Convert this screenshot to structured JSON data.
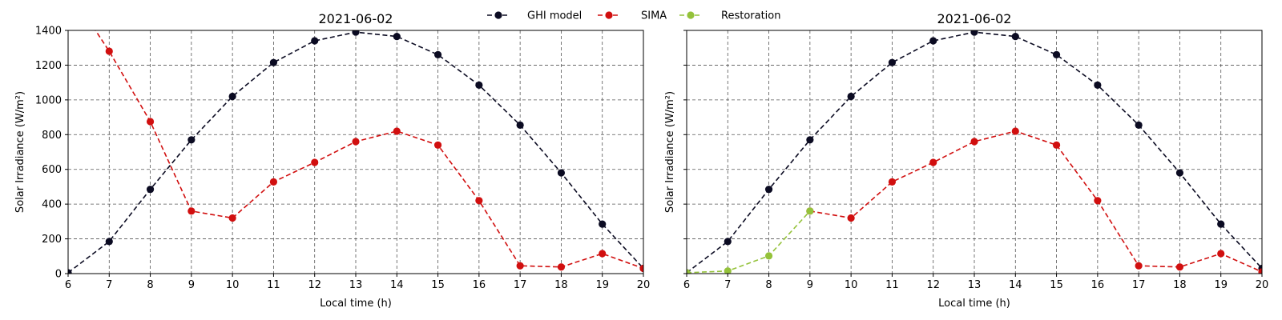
{
  "legend": {
    "placement": "top-center",
    "entries": [
      {
        "key": "ghi",
        "label": "GHI model",
        "color": "#0b0b22"
      },
      {
        "key": "sima",
        "label": "SIMA",
        "color": "#d10f0f"
      },
      {
        "key": "restoration",
        "label": "Restoration",
        "color": "#94c23a"
      }
    ]
  },
  "chart_data": [
    {
      "type": "line",
      "title": "2021-06-02",
      "xlabel": "Local time (h)",
      "ylabel": "Solar Irradiance (W/m²)",
      "xlim": [
        6,
        20
      ],
      "ylim": [
        0,
        1400
      ],
      "xticks": [
        6,
        7,
        8,
        9,
        10,
        11,
        12,
        13,
        14,
        15,
        16,
        17,
        18,
        19,
        20
      ],
      "yticks": [
        0,
        200,
        400,
        600,
        800,
        1000,
        1200,
        1400
      ],
      "grid": true,
      "series": [
        {
          "key": "ghi",
          "name": "GHI model",
          "color": "#0b0b22",
          "x": [
            6,
            7,
            8,
            9,
            10,
            11,
            12,
            13,
            14,
            15,
            16,
            17,
            18,
            19,
            20
          ],
          "y": [
            5,
            185,
            485,
            770,
            1020,
            1215,
            1340,
            1390,
            1365,
            1260,
            1085,
            855,
            580,
            285,
            30
          ]
        },
        {
          "key": "sima",
          "name": "SIMA",
          "color": "#d10f0f",
          "x": [
            6,
            7,
            8,
            9,
            10,
            11,
            12,
            13,
            14,
            15,
            16,
            17,
            18,
            19,
            20
          ],
          "y": [
            1640,
            1280,
            875,
            360,
            320,
            528,
            640,
            760,
            820,
            740,
            420,
            45,
            38,
            115,
            30
          ],
          "markers_from_index": 1
        }
      ]
    },
    {
      "type": "line",
      "title": "2021-06-02",
      "xlabel": "Local time (h)",
      "ylabel": "Solar Irradiance (W/m²)",
      "xlim": [
        6,
        20
      ],
      "ylim": [
        0,
        1400
      ],
      "xticks": [
        6,
        7,
        8,
        9,
        10,
        11,
        12,
        13,
        14,
        15,
        16,
        17,
        18,
        19,
        20
      ],
      "yticks": [
        0,
        200,
        400,
        600,
        800,
        1000,
        1200,
        1400
      ],
      "grid": true,
      "series": [
        {
          "key": "ghi",
          "name": "GHI model",
          "color": "#0b0b22",
          "x": [
            6,
            7,
            8,
            9,
            10,
            11,
            12,
            13,
            14,
            15,
            16,
            17,
            18,
            19,
            20
          ],
          "y": [
            5,
            185,
            485,
            770,
            1020,
            1215,
            1340,
            1390,
            1365,
            1260,
            1085,
            855,
            580,
            285,
            30
          ]
        },
        {
          "key": "sima",
          "name": "SIMA",
          "color": "#d10f0f",
          "x": [
            9,
            10,
            11,
            12,
            13,
            14,
            15,
            16,
            17,
            18,
            19,
            20
          ],
          "y": [
            360,
            320,
            528,
            640,
            760,
            820,
            740,
            420,
            45,
            38,
            115,
            10
          ]
        },
        {
          "key": "restoration",
          "name": "Restoration",
          "color": "#94c23a",
          "x": [
            6,
            7,
            8,
            9
          ],
          "y": [
            5,
            15,
            102,
            360
          ]
        }
      ]
    }
  ]
}
